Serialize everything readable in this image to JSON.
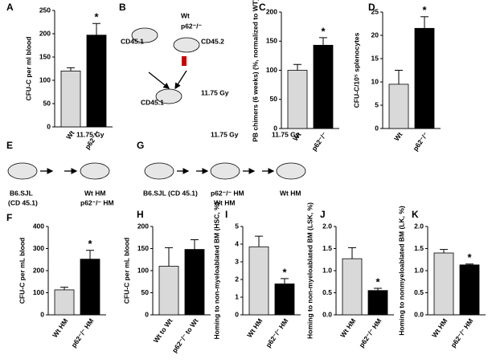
{
  "chart_data": [
    {
      "panel": "A",
      "type": "bar",
      "ylabel": "CFU-C per ml blood",
      "categories": [
        "Wt",
        "p62⁻/⁻"
      ],
      "values": [
        120,
        197
      ],
      "errors": [
        7,
        25
      ],
      "colors": [
        "#d9d9d9",
        "#000000"
      ],
      "ylim": [
        0,
        250
      ],
      "yticks": [
        0,
        50,
        100,
        150,
        200,
        250
      ],
      "annotation": {
        "text": "*",
        "category": "p62⁻/⁻"
      }
    },
    {
      "panel": "C",
      "type": "bar",
      "ylabel": "PB chimers (6 weeks) (%, normalized to WT)",
      "categories": [
        "Wt",
        "p62⁻/⁻"
      ],
      "values": [
        100,
        143
      ],
      "errors": [
        10,
        13
      ],
      "colors": [
        "#d9d9d9",
        "#000000"
      ],
      "ylim": [
        0,
        200
      ],
      "yticks": [
        0,
        50,
        100,
        150,
        200
      ],
      "annotation": {
        "text": "*",
        "category": "p62⁻/⁻"
      }
    },
    {
      "panel": "D",
      "type": "bar",
      "ylabel": "CFU-C/10⁵ splenocytes",
      "categories": [
        "Wt",
        "p62⁻/⁻"
      ],
      "values": [
        9.5,
        21.5
      ],
      "errors": [
        3,
        2.5
      ],
      "colors": [
        "#d9d9d9",
        "#000000"
      ],
      "ylim": [
        0,
        25
      ],
      "yticks": [
        0,
        5,
        10,
        15,
        20,
        25
      ],
      "annotation": {
        "text": "*",
        "category": "p62⁻/⁻"
      }
    },
    {
      "panel": "F",
      "type": "bar",
      "ylabel": "CFU-C per mL blood",
      "categories": [
        "Wt HM",
        "p62⁻/⁻ HM"
      ],
      "values": [
        113,
        252
      ],
      "errors": [
        12,
        40
      ],
      "colors": [
        "#d9d9d9",
        "#000000"
      ],
      "ylim": [
        0,
        400
      ],
      "yticks": [
        0,
        100,
        200,
        300,
        400
      ],
      "annotation": {
        "text": "*",
        "category": "p62⁻/⁻ HM"
      }
    },
    {
      "panel": "H",
      "type": "bar",
      "ylabel": "CFU-C per mL blood",
      "categories": [
        "Wt to Wt",
        "p62⁻/⁻ to Wt"
      ],
      "values": [
        110,
        148
      ],
      "errors": [
        42,
        22
      ],
      "colors": [
        "#d9d9d9",
        "#000000"
      ],
      "ylim": [
        0,
        200
      ],
      "yticks": [
        0,
        50,
        100,
        150,
        200
      ]
    },
    {
      "panel": "I",
      "type": "bar",
      "ylabel": "Homing to non-myeloablated BM (HSC, %)",
      "categories": [
        "Wt HM",
        "p62⁻/⁻ HM"
      ],
      "values": [
        3.85,
        1.75
      ],
      "errors": [
        0.6,
        0.3
      ],
      "colors": [
        "#d9d9d9",
        "#000000"
      ],
      "ylim": [
        0,
        5
      ],
      "yticks": [
        0,
        1,
        2,
        3,
        4,
        5
      ],
      "annotation": {
        "text": "*",
        "category": "p62⁻/⁻ HM"
      }
    },
    {
      "panel": "J",
      "type": "bar",
      "ylabel": "Homing to non-myeloablated BM (LSK, %)",
      "categories": [
        "Wt HM",
        "p62⁻/⁻ HM"
      ],
      "values": [
        1.27,
        0.55
      ],
      "errors": [
        0.25,
        0.05
      ],
      "colors": [
        "#d9d9d9",
        "#000000"
      ],
      "ylim": [
        0,
        2
      ],
      "yticks": [
        {
          "value": 0,
          "label": "0.0"
        },
        0.5,
        {
          "value": 1,
          "label": "1.0"
        },
        1.5,
        {
          "value": 2,
          "label": "2.0"
        }
      ],
      "annotation": {
        "text": "*",
        "category": "p62⁻/⁻ HM"
      }
    },
    {
      "panel": "K",
      "type": "bar",
      "ylabel": "Homing to nonmyeloablated BM (LK, %)",
      "categories": [
        "Wt HM",
        "p62⁻/⁻ HM"
      ],
      "values": [
        1.4,
        1.13
      ],
      "errors": [
        0.08,
        0.02
      ],
      "colors": [
        "#d9d9d9",
        "#000000"
      ],
      "ylim": [
        0,
        2
      ],
      "yticks": [
        {
          "value": 0,
          "label": "0.0"
        },
        0.5,
        {
          "value": 1,
          "label": "1.0"
        },
        1.5,
        {
          "value": 2,
          "label": "2.0"
        }
      ],
      "annotation": {
        "text": "*",
        "category": "p62⁻/⁻ HM"
      }
    }
  ],
  "diagrams": [
    {
      "panel": "B",
      "labels": [
        "Wt",
        "p62⁻/⁻",
        "CD45.1",
        "CD45.2",
        "11.75 Gy",
        "CD45.1"
      ]
    },
    {
      "panel": "E",
      "labels": [
        "11.75 Gy",
        "B6.SJL",
        "(CD 45.1)",
        "Wt HM",
        "p62⁻/⁻ HM"
      ]
    },
    {
      "panel": "G",
      "labels": [
        "B6.SJL (CD 45.1)",
        "11.75 Gy",
        "p62⁻/⁻ HM",
        "Wt HM",
        "11.75 Gy",
        "Wt HM"
      ]
    }
  ]
}
